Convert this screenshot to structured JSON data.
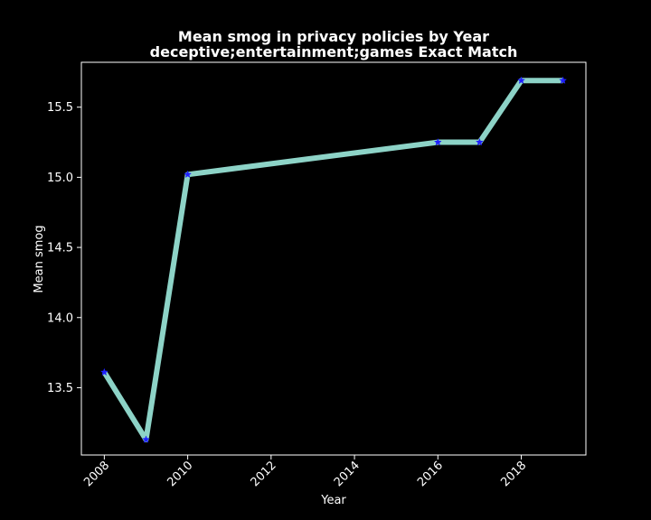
{
  "chart_data": {
    "type": "line",
    "title": "Mean smog in privacy policies by Year",
    "subtitle": "deceptive;entertainment;games Exact Match",
    "xlabel": "Year",
    "ylabel": "Mean smog",
    "x": [
      2008,
      2009,
      2010,
      2016,
      2017,
      2018,
      2019
    ],
    "series": [
      {
        "values": [
          13.61,
          13.13,
          15.02,
          15.25,
          15.25,
          15.69,
          15.69
        ]
      }
    ],
    "xlim": [
      2007.45,
      2019.55
    ],
    "ylim": [
      13.02,
      15.82
    ],
    "xticks": [
      "2008",
      "2010",
      "2012",
      "2014",
      "2016",
      "2018"
    ],
    "yticks": [
      "13.5",
      "14.0",
      "14.5",
      "15.0",
      "15.5"
    ],
    "grid": false,
    "legend": "none",
    "colors": {
      "background": "#000000",
      "line": "#8dd3c7",
      "marker": "#1f1fff",
      "axes": "#ffffff",
      "text": "#ffffff"
    }
  }
}
